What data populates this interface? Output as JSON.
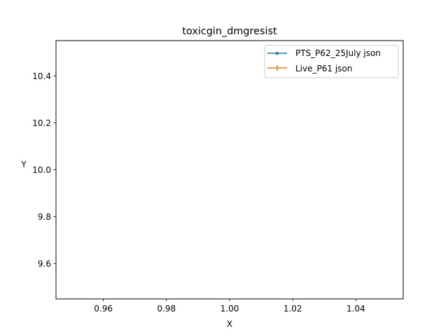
{
  "chart_data": {
    "type": "line",
    "title": "toxicgin_dmgresist",
    "xlabel": "X",
    "ylabel": "Y",
    "xlim": [
      0.945,
      1.055
    ],
    "ylim": [
      9.45,
      10.55
    ],
    "x_ticks": [
      "0.96",
      "0.98",
      "1.00",
      "1.02",
      "1.04"
    ],
    "x_tick_values": [
      0.96,
      0.98,
      1.0,
      1.02,
      1.04
    ],
    "y_ticks": [
      "9.6",
      "9.8",
      "10.0",
      "10.2",
      "10.4"
    ],
    "y_tick_values": [
      9.6,
      9.8,
      10.0,
      10.2,
      10.4
    ],
    "grid": false,
    "legend_position": "top-right",
    "series": [
      {
        "name": "PTS_P62_25July json",
        "color": "#1f77b4",
        "marker": "star",
        "x": [],
        "y": []
      },
      {
        "name": "Live_P61 json",
        "color": "#ff7f0e",
        "marker": "plus",
        "x": [],
        "y": []
      }
    ]
  }
}
